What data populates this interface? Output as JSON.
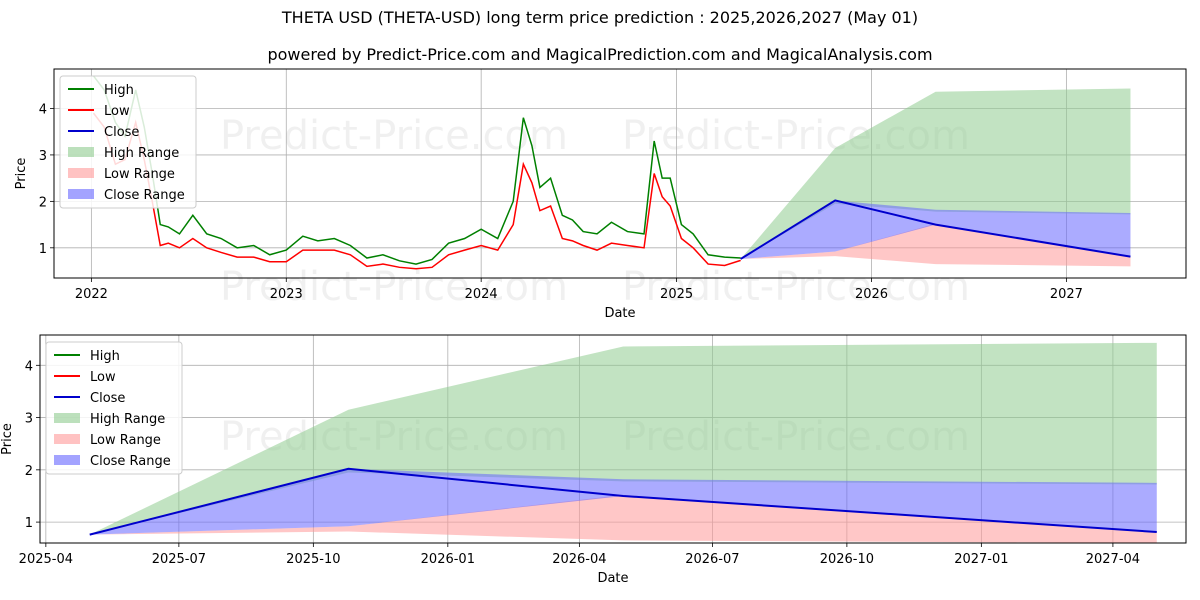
{
  "title": "THETA USD (THETA-USD) long term price prediction : 2025,2026,2027 (May 01)",
  "subtitle": "powered by Predict-Price.com and MagicalPrediction.com and MagicalAnalysis.com",
  "watermark": "Predict-Price.com",
  "colors": {
    "high": "#008000",
    "low": "#ff0000",
    "close": "#0000cc",
    "high_range": "#8fcc8f",
    "low_range": "#ff9999",
    "close_range": "#6666ff"
  },
  "chart_data": [
    {
      "type": "line",
      "xlabel": "Date",
      "ylabel": "Price",
      "xlim": [
        "2021-10-23",
        "2027-08-13"
      ],
      "ylim": [
        0.35,
        4.85
      ],
      "x_ticks": [
        "2022",
        "2023",
        "2024",
        "2025",
        "2026",
        "2027"
      ],
      "y_ticks": [
        1,
        2,
        3,
        4
      ],
      "grid": true,
      "legend_position": "top-left",
      "legend": [
        "High",
        "Low",
        "Close",
        "High Range",
        "Low Range",
        "Close Range"
      ],
      "history": {
        "dates": [
          "2022-01-05",
          "2022-01-25",
          "2022-02-15",
          "2022-03-05",
          "2022-03-25",
          "2022-04-10",
          "2022-04-25",
          "2022-05-10",
          "2022-05-25",
          "2022-06-15",
          "2022-07-10",
          "2022-08-05",
          "2022-09-01",
          "2022-10-01",
          "2022-11-01",
          "2022-12-01",
          "2023-01-01",
          "2023-02-01",
          "2023-03-01",
          "2023-04-01",
          "2023-05-01",
          "2023-06-01",
          "2023-07-01",
          "2023-08-01",
          "2023-09-01",
          "2023-10-01",
          "2023-11-01",
          "2023-12-01",
          "2024-01-01",
          "2024-02-01",
          "2024-03-01",
          "2024-03-20",
          "2024-04-05",
          "2024-04-20",
          "2024-05-10",
          "2024-06-01",
          "2024-06-20",
          "2024-07-10",
          "2024-08-05",
          "2024-09-01",
          "2024-10-01",
          "2024-11-01",
          "2024-11-20",
          "2024-12-05",
          "2024-12-20",
          "2025-01-10",
          "2025-02-01",
          "2025-03-01",
          "2025-04-01",
          "2025-05-01"
        ],
        "high": [
          4.7,
          4.4,
          3.7,
          3.4,
          4.4,
          3.6,
          2.6,
          1.5,
          1.45,
          1.3,
          1.7,
          1.3,
          1.2,
          1.0,
          1.05,
          0.85,
          0.95,
          1.25,
          1.15,
          1.2,
          1.05,
          0.78,
          0.85,
          0.72,
          0.65,
          0.75,
          1.1,
          1.2,
          1.4,
          1.2,
          2.0,
          3.8,
          3.2,
          2.3,
          2.5,
          1.7,
          1.6,
          1.35,
          1.3,
          1.55,
          1.35,
          1.3,
          3.3,
          2.5,
          2.5,
          1.5,
          1.3,
          0.85,
          0.8,
          0.78
        ],
        "low": [
          3.9,
          3.6,
          2.8,
          2.9,
          3.7,
          2.9,
          2.0,
          1.05,
          1.1,
          1.0,
          1.2,
          1.0,
          0.9,
          0.8,
          0.8,
          0.7,
          0.7,
          0.95,
          0.95,
          0.95,
          0.85,
          0.6,
          0.65,
          0.58,
          0.55,
          0.58,
          0.85,
          0.95,
          1.05,
          0.95,
          1.5,
          2.8,
          2.4,
          1.8,
          1.9,
          1.2,
          1.15,
          1.05,
          0.95,
          1.1,
          1.05,
          1.0,
          2.6,
          2.1,
          1.9,
          1.2,
          1.0,
          0.65,
          0.62,
          0.73
        ],
        "close": [
          4.2,
          4.0,
          3.2,
          3.1,
          4.0,
          3.2,
          2.3,
          1.25,
          1.25,
          1.15,
          1.45,
          1.15,
          1.05,
          0.9,
          0.93,
          0.78,
          0.8,
          1.1,
          1.05,
          1.08,
          0.95,
          0.7,
          0.75,
          0.65,
          0.6,
          0.66,
          0.98,
          1.08,
          1.22,
          1.08,
          1.75,
          3.2,
          2.8,
          2.05,
          2.2,
          1.45,
          1.38,
          1.2,
          1.12,
          1.32,
          1.2,
          1.15,
          2.95,
          2.3,
          2.2,
          1.35,
          1.15,
          0.75,
          0.7,
          0.76
        ]
      },
      "forecast": {
        "dates": [
          "2025-05-01",
          "2025-10-25",
          "2026-05-01",
          "2027-05-01"
        ],
        "close": [
          0.76,
          2.02,
          1.5,
          0.81
        ],
        "high_range": {
          "lower": [
            0.76,
            1.95,
            1.78,
            1.72
          ],
          "upper": [
            0.76,
            3.15,
            4.36,
            4.43
          ]
        },
        "low_range": {
          "lower": [
            0.76,
            0.82,
            0.65,
            0.6
          ],
          "upper": [
            0.76,
            0.92,
            1.52,
            0.82
          ]
        },
        "close_range": {
          "lower": [
            0.76,
            0.92,
            1.5,
            0.81
          ],
          "upper": [
            0.76,
            2.02,
            1.82,
            1.75
          ]
        }
      }
    },
    {
      "type": "line",
      "xlabel": "Date",
      "ylabel": "Price",
      "xlim": [
        "2025-03-28",
        "2027-05-21"
      ],
      "ylim": [
        0.6,
        4.58
      ],
      "x_ticks": [
        "2025-04",
        "2025-07",
        "2025-10",
        "2026-01",
        "2026-04",
        "2026-07",
        "2026-10",
        "2027-01",
        "2027-04"
      ],
      "y_ticks": [
        1,
        2,
        3,
        4
      ],
      "grid": true,
      "legend_position": "top-left",
      "legend": [
        "High",
        "Low",
        "Close",
        "High Range",
        "Low Range",
        "Close Range"
      ]
    }
  ]
}
